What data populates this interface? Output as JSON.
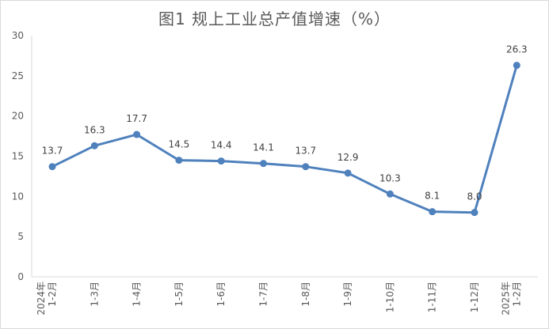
{
  "chart_data": {
    "type": "line",
    "title": "图1 规上工业总产值增速（%）",
    "xlabel": "",
    "ylabel": "",
    "ylim": [
      0,
      30
    ],
    "yticks": [
      0,
      5,
      10,
      15,
      20,
      25,
      30
    ],
    "grid": false,
    "legend": "none",
    "categories": [
      [
        "2024年",
        "1-2月"
      ],
      [
        "1-3月"
      ],
      [
        "1-4月"
      ],
      [
        "1-5月"
      ],
      [
        "1-6月"
      ],
      [
        "1-7月"
      ],
      [
        "1-8月"
      ],
      [
        "1-9月"
      ],
      [
        "1-10月"
      ],
      [
        "1-11月"
      ],
      [
        "1-12月"
      ],
      [
        "2025年",
        "1-2月"
      ]
    ],
    "series": [
      {
        "values": [
          13.7,
          16.3,
          17.7,
          14.5,
          14.4,
          14.1,
          13.7,
          12.9,
          10.3,
          8.1,
          8.0,
          26.3
        ],
        "labels": [
          "13.7",
          "16.3",
          "17.7",
          "14.5",
          "14.4",
          "14.1",
          "13.7",
          "12.9",
          "10.3",
          "8.1",
          "8.0",
          "26.3"
        ],
        "color": "#4f81bd"
      }
    ]
  }
}
